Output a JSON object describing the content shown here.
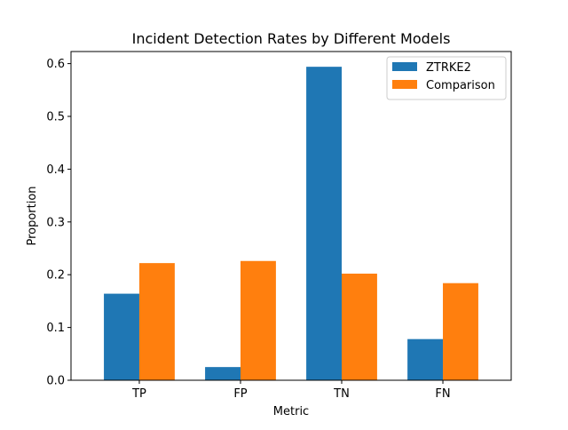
{
  "chart_data": {
    "type": "bar",
    "title": "Incident Detection Rates by Different Models",
    "xlabel": "Metric",
    "ylabel": "Proportion",
    "categories": [
      "TP",
      "FP",
      "TN",
      "FN"
    ],
    "series": [
      {
        "name": "ZTRKE2",
        "color": "#1f77b4",
        "values": [
          0.164,
          0.025,
          0.594,
          0.078
        ]
      },
      {
        "name": "Comparison",
        "color": "#ff7f0e",
        "values": [
          0.222,
          0.226,
          0.202,
          0.184
        ]
      }
    ],
    "ylim": [
      0,
      0.6
    ],
    "yticks": [
      "0.0",
      "0.1",
      "0.2",
      "0.3",
      "0.4",
      "0.5",
      "0.6"
    ],
    "grid": false,
    "legend_position": "top-right"
  }
}
